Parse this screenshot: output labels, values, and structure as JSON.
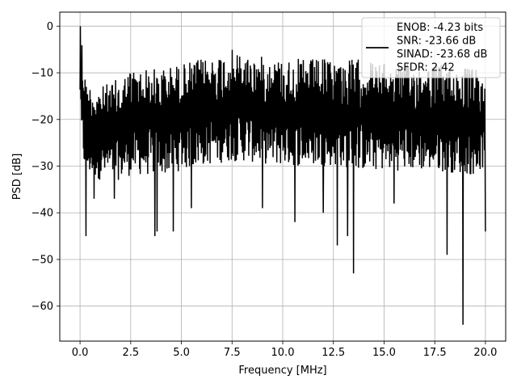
{
  "chart_data": {
    "type": "line",
    "xlabel": "Frequency [MHz]",
    "ylabel": "PSD [dB]",
    "xlim": [
      -1.0,
      21.0
    ],
    "ylim": [
      -67.5,
      3.0
    ],
    "xticks": [
      0.0,
      2.5,
      5.0,
      7.5,
      10.0,
      12.5,
      15.0,
      17.5,
      20.0
    ],
    "xtick_labels": [
      "0.0",
      "2.5",
      "5.0",
      "7.5",
      "10.0",
      "12.5",
      "15.0",
      "17.5",
      "20.0"
    ],
    "yticks": [
      0,
      -10,
      -20,
      -30,
      -40,
      -50,
      -60
    ],
    "ytick_labels": [
      "0",
      "−10",
      "−20",
      "−30",
      "−40",
      "−50",
      "−60"
    ],
    "grid": true,
    "legend_position": "top-right",
    "legend_lines": [
      "ENOB: -4.23 bits",
      "SNR: -23.66 dB",
      "SINAD: -23.68 dB",
      "SFDR: 2.42"
    ],
    "line_color": "#000000",
    "series": [
      {
        "name": "",
        "x_start": 0.0,
        "x_end": 20.0,
        "envelope_x": [
          0.0,
          0.05,
          0.3,
          1.0,
          2.0,
          2.5,
          4.0,
          5.0,
          6.0,
          7.5,
          8.0,
          10.0,
          12.5,
          14.0,
          15.0,
          17.5,
          19.5,
          20.0
        ],
        "envelope_upper": [
          -8,
          0,
          -12,
          -13,
          -11,
          -9,
          -9,
          -8,
          -7,
          -5,
          -6,
          -7,
          -7,
          -7,
          -8,
          -8,
          -9,
          -12
        ],
        "envelope_lower": [
          -27,
          -28,
          -32,
          -33,
          -33,
          -32,
          -32,
          -31,
          -30,
          -29,
          -29,
          -30,
          -30,
          -31,
          -31,
          -31,
          -32,
          -30
        ],
        "dips": [
          {
            "x": 0.3,
            "y": -45
          },
          {
            "x": 0.7,
            "y": -37
          },
          {
            "x": 1.7,
            "y": -37
          },
          {
            "x": 3.7,
            "y": -45
          },
          {
            "x": 3.8,
            "y": -44
          },
          {
            "x": 4.6,
            "y": -44
          },
          {
            "x": 5.5,
            "y": -39
          },
          {
            "x": 9.0,
            "y": -39
          },
          {
            "x": 10.6,
            "y": -42
          },
          {
            "x": 12.0,
            "y": -40
          },
          {
            "x": 12.7,
            "y": -47
          },
          {
            "x": 13.2,
            "y": -45
          },
          {
            "x": 13.5,
            "y": -53
          },
          {
            "x": 15.5,
            "y": -38
          },
          {
            "x": 18.1,
            "y": -49
          },
          {
            "x": 18.9,
            "y": -64
          },
          {
            "x": 20.0,
            "y": -44
          }
        ]
      }
    ]
  }
}
